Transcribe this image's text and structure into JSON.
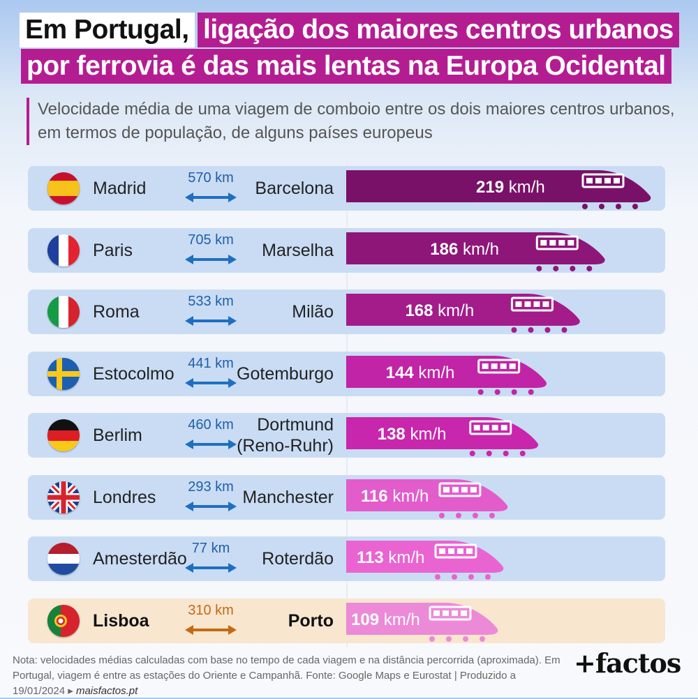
{
  "title": {
    "part1": "Em Portugal,",
    "part2": "ligação dos maiores centros urbanos",
    "part3": "por ferrovia é das mais lentas na Europa Ocidental"
  },
  "subtitle": "Velocidade média de uma viagem de comboio entre os dois maiores centros urbanos, em termos de população, de alguns países europeus",
  "chart_data": {
    "type": "bar",
    "unit": "km/h",
    "rows": [
      {
        "country_flag": "spain-flag-icon",
        "origin": "Madrid",
        "destination": "Barcelona",
        "distance": "570 km",
        "speed": 219,
        "bar_color": "#7a1168"
      },
      {
        "country_flag": "france-flag-icon",
        "origin": "Paris",
        "destination": "Marselha",
        "distance": "705 km",
        "speed": 186,
        "bar_color": "#8e1679"
      },
      {
        "country_flag": "italy-flag-icon",
        "origin": "Roma",
        "destination": "Milão",
        "distance": "533 km",
        "speed": 168,
        "bar_color": "#a31c8a"
      },
      {
        "country_flag": "sweden-flag-icon",
        "origin": "Estocolmo",
        "destination": "Gotemburgo",
        "distance": "441 km",
        "speed": 144,
        "bar_color": "#c124a6"
      },
      {
        "country_flag": "germany-flag-icon",
        "origin": "Berlim",
        "destination": "Dortmund (Reno-Ruhr)",
        "destination_lines": [
          "Dortmund",
          "(Reno-Ruhr)"
        ],
        "distance": "460 km",
        "speed": 138,
        "bar_color": "#c826ac"
      },
      {
        "country_flag": "uk-flag-icon",
        "origin": "Londres",
        "destination": "Manchester",
        "distance": "293 km",
        "speed": 116,
        "bar_color": "#e35ccb"
      },
      {
        "country_flag": "netherlands-flag-icon",
        "origin": "Amesterdão",
        "destination": "Roterdão",
        "distance": "77 km",
        "speed": 113,
        "bar_color": "#e964d1"
      },
      {
        "country_flag": "portugal-flag-icon",
        "origin": "Lisboa",
        "destination": "Porto",
        "distance": "310 km",
        "speed": 109,
        "bar_color": "#ec8ad8",
        "highlight": true
      }
    ]
  },
  "colors": {
    "accent": "#b41d92",
    "row_background": "#c9dcf4",
    "highlight_background": "#f8e6cf",
    "distance_blue": "#1f6fc0",
    "distance_orange": "#c46a14"
  },
  "footer": {
    "note": "Nota: velocidades médias calculadas com base no tempo de cada viagem e na distância percorrida (aproximada). Em Portugal, viagem é entre as estações do Oriente e Campanhã. Fonte: Google Maps e Eurostat | Produzido a 19/01/2024 ▸",
    "site": "maisfactos.pt",
    "logo": "+factos"
  }
}
